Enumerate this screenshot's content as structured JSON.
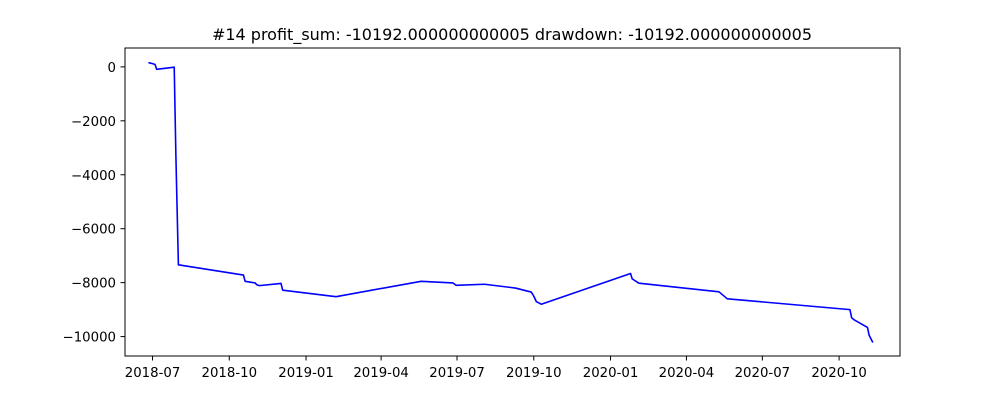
{
  "chart_data": {
    "type": "line",
    "title": "#14   profit_sum: -10192.000000000005 drawdown: -10192.000000000005",
    "xlabel": "",
    "ylabel": "",
    "xlim": [
      "2018-05-29",
      "2020-12-13"
    ],
    "ylim": [
      -10720,
      700
    ],
    "grid": false,
    "legend": "none",
    "x_ticks": [
      "2018-07-01",
      "2018-10-01",
      "2019-01-01",
      "2019-04-01",
      "2019-07-01",
      "2019-10-01",
      "2020-01-01",
      "2020-04-01",
      "2020-07-01",
      "2020-10-01"
    ],
    "x_tick_labels": [
      "2018-07",
      "2018-10",
      "2019-01",
      "2019-04",
      "2019-07",
      "2019-10",
      "2020-01",
      "2020-04",
      "2020-07",
      "2020-10"
    ],
    "y_ticks": [
      0,
      -2000,
      -4000,
      -6000,
      -8000,
      -10000
    ],
    "y_tick_labels": [
      "0",
      "−2000",
      "−4000",
      "−6000",
      "−8000",
      "−10000"
    ],
    "series": [
      {
        "color": "#0000ff",
        "x": [
          "2018-06-27",
          "2018-07-02",
          "2018-07-04",
          "2018-07-06",
          "2018-07-27",
          "2018-07-29",
          "2018-08-01",
          "2018-10-18",
          "2018-10-20",
          "2018-11-01",
          "2018-11-03",
          "2018-11-06",
          "2018-12-02",
          "2018-12-04",
          "2019-02-06",
          "2019-05-19",
          "2019-06-26",
          "2019-06-30",
          "2019-08-03",
          "2019-09-09",
          "2019-09-28",
          "2019-10-01",
          "2019-10-04",
          "2019-10-10",
          "2020-01-25",
          "2020-01-27",
          "2020-02-04",
          "2020-05-10",
          "2020-05-20",
          "2020-10-14",
          "2020-10-16",
          "2020-10-19",
          "2020-11-04",
          "2020-11-06",
          "2020-11-10"
        ],
        "y": [
          150,
          110,
          90,
          -90,
          -10,
          -3300,
          -7340,
          -7720,
          -7950,
          -8010,
          -8080,
          -8110,
          -8030,
          -8280,
          -8520,
          -7950,
          -8010,
          -8100,
          -8060,
          -8200,
          -8350,
          -8500,
          -8700,
          -8800,
          -7660,
          -7860,
          -8020,
          -8340,
          -8600,
          -9000,
          -9300,
          -9380,
          -9660,
          -9950,
          -10192
        ]
      }
    ]
  }
}
